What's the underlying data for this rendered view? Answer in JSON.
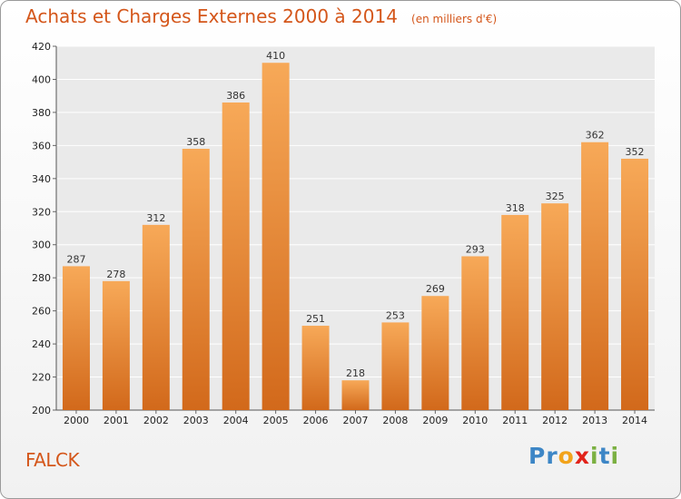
{
  "header": {
    "title": "Achats et Charges Externes 2000 à 2014",
    "unit": "(en milliers d'€)"
  },
  "footer": {
    "commune": "FALCK",
    "logo_letters": [
      "P",
      "r",
      "o",
      "x",
      "i",
      "t",
      "i"
    ],
    "logo_colors": [
      "#3d86c6",
      "#3d86c6",
      "#f2a31b",
      "#e2231a",
      "#7bb042",
      "#3d86c6",
      "#7bb042"
    ]
  },
  "colors": {
    "title": "#d4561a",
    "bar_light": "#f7a958",
    "bar_dark": "#d2691b"
  },
  "chart_data": {
    "type": "bar",
    "title": "Achats et Charges Externes 2000 à 2014",
    "subtitle": "(en milliers d'€)",
    "categories": [
      "2000",
      "2001",
      "2002",
      "2003",
      "2004",
      "2005",
      "2006",
      "2007",
      "2008",
      "2009",
      "2010",
      "2011",
      "2012",
      "2013",
      "2014"
    ],
    "values": [
      287,
      278,
      312,
      358,
      386,
      410,
      251,
      218,
      253,
      269,
      293,
      318,
      325,
      362,
      352
    ],
    "ylim": [
      200,
      420
    ],
    "yticks": [
      200,
      220,
      240,
      260,
      280,
      300,
      320,
      340,
      360,
      380,
      400,
      420
    ],
    "grid": true,
    "data_labels": true
  }
}
